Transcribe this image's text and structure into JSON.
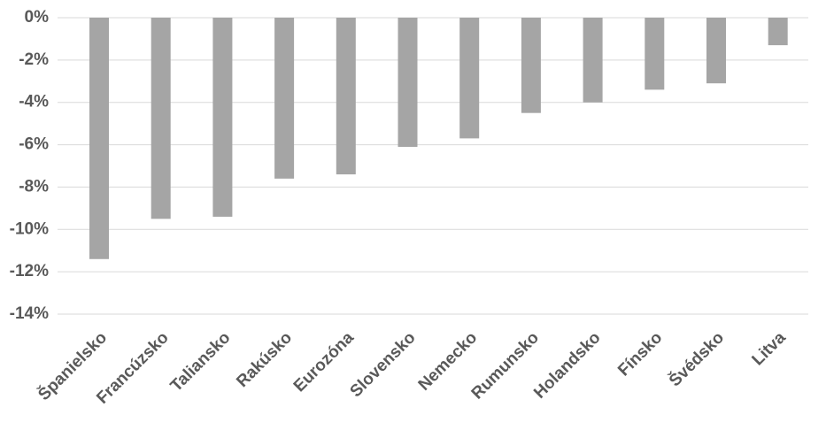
{
  "chart_data": {
    "type": "bar",
    "categories": [
      "Španielsko",
      "Francúzsko",
      "Taliansko",
      "Rakúsko",
      "Eurozóna",
      "Slovensko",
      "Nemecko",
      "Rumunsko",
      "Holandsko",
      "Fínsko",
      "Švédsko",
      "Litva"
    ],
    "values": [
      -11.4,
      -9.5,
      -9.4,
      -7.6,
      -7.4,
      -6.1,
      -5.7,
      -4.5,
      -4.0,
      -3.4,
      -3.1,
      -1.3
    ],
    "color": "#a5a5a5",
    "ylim": [
      -14,
      0
    ],
    "yticks": [
      {
        "value": 0,
        "label": "0%"
      },
      {
        "value": -2,
        "label": "-2%"
      },
      {
        "value": -4,
        "label": "-4%"
      },
      {
        "value": -6,
        "label": "-6%"
      },
      {
        "value": -8,
        "label": "-8%"
      },
      {
        "value": -10,
        "label": "-10%"
      },
      {
        "value": -12,
        "label": "-12%"
      },
      {
        "value": -14,
        "label": "-14%"
      }
    ],
    "grid": true
  }
}
